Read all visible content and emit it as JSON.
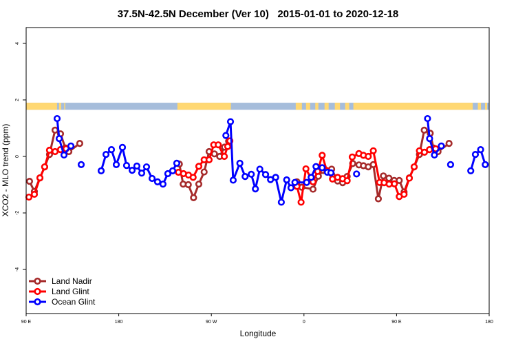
{
  "chart_data": {
    "type": "line",
    "title": "37.5N-42.5N December (Ver 10)   2015-01-01 to 2020-12-18",
    "xlabel": "Longitude",
    "ylabel": "XCO2 - MLO trend (ppm)",
    "xlim": [
      90,
      540
    ],
    "ylim": [
      -5.56,
      4.56
    ],
    "x_ticks": [
      {
        "value": 90,
        "label": "90 E"
      },
      {
        "value": 180,
        "label": "180"
      },
      {
        "value": 270,
        "label": "90 W"
      },
      {
        "value": 360,
        "label": "0"
      },
      {
        "value": 450,
        "label": "90 E"
      },
      {
        "value": 540,
        "label": "180"
      }
    ],
    "y_ticks": [
      {
        "value": 4,
        "label": "4"
      },
      {
        "value": 2,
        "label": "2"
      },
      {
        "value": 0,
        "label": "0"
      },
      {
        "value": -2,
        "label": "-2"
      },
      {
        "value": -4,
        "label": "-4"
      }
    ],
    "grid": false,
    "legend_position": "bottom-left",
    "map_band": {
      "value_range": [
        1.65,
        1.9
      ],
      "land_color": "#FFD873",
      "ocean_color": "#A6BDDB",
      "land_spans": [
        [
          90,
          120
        ],
        [
          122,
          124
        ],
        [
          127,
          128
        ],
        [
          237,
          289
        ],
        [
          352,
          358
        ],
        [
          362,
          366
        ],
        [
          371,
          374
        ],
        [
          380,
          384
        ],
        [
          390,
          395
        ],
        [
          400,
          404
        ],
        [
          408,
          524
        ],
        [
          529,
          532
        ],
        [
          536,
          538
        ]
      ]
    },
    "series": [
      {
        "name": "Land Nadir",
        "color": "#A52A2A",
        "segments": [
          [
            [
              93.3,
              -0.88
            ],
            [
              98,
              -1.24
            ],
            [
              103.4,
              -0.76
            ],
            [
              108,
              -0.37
            ],
            [
              112.7,
              0.07
            ],
            [
              118.1,
              0.93
            ],
            [
              123.4,
              0.8
            ],
            [
              128.1,
              0.3
            ],
            [
              131.5,
              0.17
            ],
            [
              142.1,
              0.46
            ]
          ],
          [
            [
              238.9,
              -0.27
            ],
            [
              242.6,
              -0.98
            ],
            [
              247.6,
              -1.0
            ],
            [
              252.7,
              -1.46
            ],
            [
              257.8,
              -0.98
            ],
            [
              263,
              -0.55
            ],
            [
              267.8,
              0.17
            ],
            [
              273,
              0.09
            ],
            [
              278.1,
              0.0
            ],
            [
              282.8,
              0.33
            ],
            [
              286.8,
              0.54
            ]
          ],
          [
            [
              353.2,
              -0.9
            ],
            [
              357.9,
              -1.09
            ],
            [
              368.8,
              -1.16
            ],
            [
              374,
              -0.7
            ],
            [
              378.8,
              -0.5
            ],
            [
              386.9,
              -0.45
            ],
            [
              392.7,
              -0.87
            ],
            [
              397.6,
              -0.93
            ],
            [
              402,
              -0.71
            ],
            [
              407.4,
              -0.25
            ],
            [
              413.4,
              -0.3
            ],
            [
              417.8,
              -0.33
            ],
            [
              422.5,
              -0.37
            ],
            [
              427.4,
              -0.29
            ],
            [
              432.3,
              -1.5
            ],
            [
              437.2,
              -0.69
            ],
            [
              442.6,
              -0.77
            ],
            [
              447.7,
              -0.85
            ],
            [
              452.6,
              -0.85
            ],
            [
              457.3,
              -1.26
            ],
            [
              462.4,
              -0.76
            ],
            [
              467.1,
              -0.37
            ],
            [
              472.2,
              0.07
            ],
            [
              476.9,
              0.93
            ],
            [
              482.7,
              0.82
            ],
            [
              485.8,
              0.3
            ],
            [
              490.3,
              0.17
            ],
            [
              501,
              0.46
            ]
          ]
        ]
      },
      {
        "name": "Land Glint",
        "color": "#FF0000",
        "segments": [
          [
            [
              92.7,
              -1.44
            ],
            [
              98,
              -1.34
            ],
            [
              103.4,
              -0.76
            ],
            [
              108,
              -0.37
            ],
            [
              112.7,
              0.22
            ],
            [
              118.1,
              0.17
            ],
            [
              123.4,
              0.24
            ],
            [
              128.8,
              0.27
            ]
          ],
          [
            [
              238,
              -0.56
            ],
            [
              242.9,
              -0.61
            ],
            [
              247.8,
              -0.66
            ],
            [
              252.3,
              -0.74
            ],
            [
              257.8,
              -0.35
            ],
            [
              263,
              -0.12
            ],
            [
              267.8,
              -0.12
            ],
            [
              272.3,
              0.41
            ],
            [
              276.7,
              0.41
            ],
            [
              282.6,
              0.0
            ],
            [
              285.9,
              0.35
            ],
            [
              288,
              0.55
            ]
          ],
          [
            [
              353.2,
              -1.06
            ],
            [
              357.2,
              -1.62
            ],
            [
              361.9,
              -0.44
            ],
            [
              368.8,
              -0.9
            ],
            [
              373.3,
              -0.53
            ],
            [
              377.7,
              0.04
            ],
            [
              382.2,
              -0.5
            ],
            [
              387.7,
              -0.8
            ],
            [
              392.7,
              -0.74
            ],
            [
              397.6,
              -0.79
            ],
            [
              402,
              -0.86
            ],
            [
              406.9,
              -0.02
            ],
            [
              413.4,
              0.1
            ],
            [
              417.8,
              0.04
            ],
            [
              422.5,
              0.0
            ],
            [
              427.4,
              0.2
            ],
            [
              433.5,
              -0.92
            ],
            [
              437.9,
              -0.93
            ],
            [
              442.8,
              -0.98
            ],
            [
              447.9,
              -0.97
            ],
            [
              452.6,
              -1.42
            ],
            [
              457.3,
              -1.34
            ],
            [
              462.4,
              -0.77
            ],
            [
              467.1,
              -0.37
            ],
            [
              472.2,
              0.2
            ],
            [
              477.1,
              0.15
            ],
            [
              482,
              0.24
            ],
            [
              488,
              0.27
            ]
          ]
        ]
      },
      {
        "name": "Ocean Glint",
        "color": "#0000FF",
        "segments": [
          [
            [
              120.1,
              1.34
            ],
            [
              122.1,
              0.63
            ],
            [
              126.8,
              0.05
            ],
            [
              133.5,
              0.37
            ]
          ],
          [
            [
              143.5,
              -0.29
            ]
          ],
          [
            [
              162.9,
              -0.51
            ],
            [
              167.6,
              0.07
            ],
            [
              172.9,
              0.24
            ],
            [
              177.6,
              -0.29
            ],
            [
              183.6,
              0.32
            ],
            [
              187.6,
              -0.32
            ],
            [
              193,
              -0.49
            ],
            [
              197.6,
              -0.34
            ],
            [
              202.3,
              -0.59
            ],
            [
              207,
              -0.37
            ],
            [
              212.4,
              -0.78
            ],
            [
              217.7,
              -0.9
            ],
            [
              223,
              -0.98
            ],
            [
              227.7,
              -0.61
            ],
            [
              232.4,
              -0.51
            ],
            [
              236.4,
              -0.24
            ]
          ],
          [
            [
              284.1,
              0.74
            ],
            [
              288.6,
              1.23
            ],
            [
              291.2,
              -0.84
            ],
            [
              297.7,
              -0.24
            ],
            [
              302.8,
              -0.71
            ],
            [
              308.8,
              -0.63
            ],
            [
              312.8,
              -1.15
            ],
            [
              317.1,
              -0.45
            ],
            [
              322.7,
              -0.64
            ],
            [
              327.5,
              -0.82
            ],
            [
              332.5,
              -0.74
            ],
            [
              338,
              -1.62
            ],
            [
              343.2,
              -0.83
            ],
            [
              347.4,
              -1.11
            ],
            [
              351.2,
              -0.92
            ],
            [
              362.6,
              -0.92
            ],
            [
              367,
              -0.74
            ],
            [
              371.7,
              -0.36
            ],
            [
              377.7,
              -0.4
            ],
            [
              382.8,
              -0.56
            ],
            [
              386.2,
              -0.58
            ]
          ],
          [
            [
              411.1,
              -0.62
            ]
          ],
          [
            [
              480.1,
              1.34
            ],
            [
              482.1,
              0.63
            ],
            [
              486.8,
              0.05
            ],
            [
              493.5,
              0.37
            ]
          ],
          [
            [
              502.5,
              -0.29
            ]
          ],
          [
            [
              522.1,
              -0.51
            ],
            [
              526.6,
              0.07
            ],
            [
              531.7,
              0.24
            ],
            [
              536.2,
              -0.29
            ]
          ]
        ]
      }
    ]
  }
}
